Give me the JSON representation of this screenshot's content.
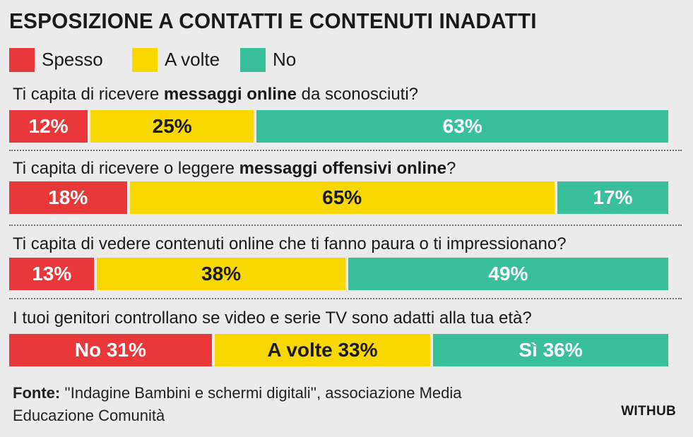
{
  "title": "ESPOSIZIONE A CONTATTI E CONTENUTI INADATTI",
  "colors": {
    "spesso": "#e8383a",
    "a_volte": "#f8d800",
    "no": "#3abf9b",
    "background": "#ebebeb"
  },
  "legend": [
    {
      "label": "Spesso",
      "color": "#e8383a"
    },
    {
      "label": "A volte",
      "color": "#f8d800"
    },
    {
      "label": "No",
      "color": "#3abf9b"
    }
  ],
  "questions": [
    {
      "pre": "Ti capita di ricevere ",
      "bold": "messaggi online",
      "post": " da sconosciuti?"
    },
    {
      "pre": "Ti capita di ricevere o leggere ",
      "bold": "messaggi offensivi online",
      "post": "?"
    },
    {
      "pre": "Ti capita di vedere contenuti online che ti fanno paura o ti impressionano?",
      "bold": "",
      "post": ""
    },
    {
      "pre": "I tuoi genitori controllano se video e serie TV sono adatti alla tua età?",
      "bold": "",
      "post": ""
    }
  ],
  "source": {
    "label": "Fonte:",
    "text": " ''Indagine Bambini e schermi digitali'', associazione Media Educazione Comunità"
  },
  "brand": "WITHUB",
  "chart_data": {
    "type": "bar",
    "orientation": "horizontal-stacked-100",
    "title": "ESPOSIZIONE A CONTATTI E CONTENUTI INADATTI",
    "categories": [
      "Ti capita di ricevere messaggi online da sconosciuti?",
      "Ti capita di ricevere o leggere messaggi offensivi online?",
      "Ti capita di vedere contenuti online che ti fanno paura o ti impressionano?",
      "I tuoi genitori controllano se video e serie TV sono adatti alla tua età?"
    ],
    "series": [
      {
        "name": "Spesso",
        "color": "#e8383a",
        "values": [
          12,
          18,
          13,
          31
        ]
      },
      {
        "name": "A volte",
        "color": "#f8d800",
        "values": [
          25,
          65,
          38,
          33
        ]
      },
      {
        "name": "No",
        "color": "#3abf9b",
        "values": [
          63,
          17,
          49,
          36
        ]
      }
    ],
    "data_labels": [
      [
        "12%",
        "25%",
        "63%"
      ],
      [
        "18%",
        "65%",
        "17%"
      ],
      [
        "13%",
        "38%",
        "49%"
      ],
      [
        "No 31%",
        "A volte 33%",
        "Sì 36%"
      ]
    ],
    "legend_position": "top-left",
    "xlim": [
      0,
      100
    ],
    "grid": false
  }
}
